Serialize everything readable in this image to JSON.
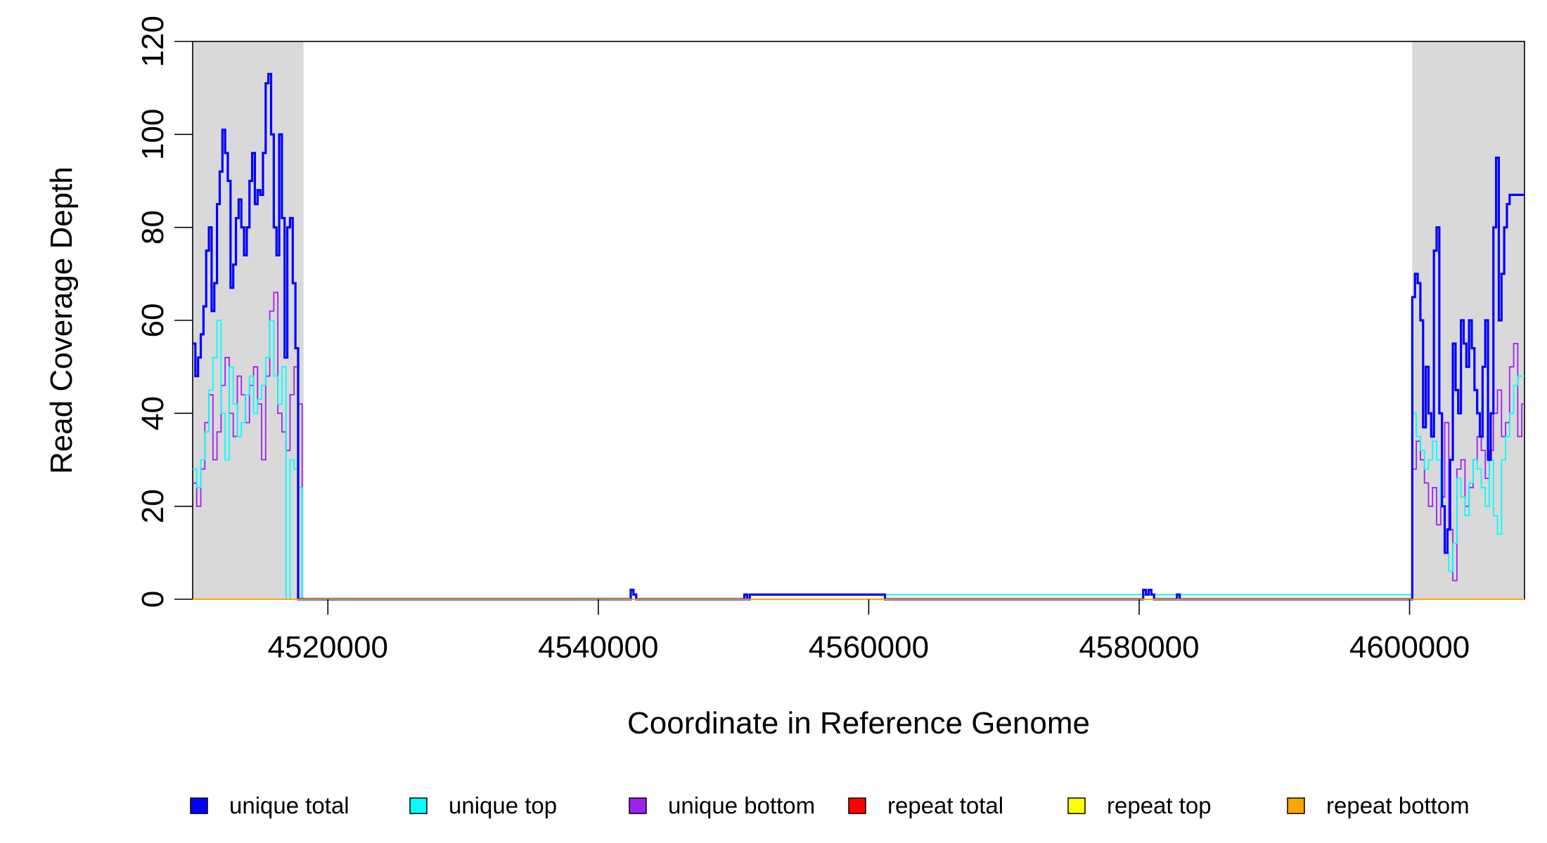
{
  "chart_data": {
    "type": "line",
    "xlabel": "Coordinate in Reference Genome",
    "ylabel": "Read Coverage Depth",
    "xlim": [
      4510000,
      4608500
    ],
    "ylim": [
      0,
      120
    ],
    "x_ticks": [
      4520000,
      4540000,
      4560000,
      4580000,
      4600000
    ],
    "x_tick_labels": [
      "4520000",
      "4540000",
      "4560000",
      "4580000",
      "4600000"
    ],
    "y_ticks": [
      0,
      20,
      40,
      60,
      80,
      100,
      120
    ],
    "y_tick_labels": [
      "0",
      "20",
      "40",
      "60",
      "80",
      "100",
      "120"
    ],
    "shaded_regions": [
      [
        4510000,
        4518200
      ],
      [
        4600200,
        4608500
      ]
    ],
    "shade_color": "#d9d9d9",
    "legend_position": "bottom",
    "series": [
      {
        "name": "unique total",
        "color": "#0000ff",
        "x": [
          4510000,
          4510200,
          4510400,
          4510600,
          4510800,
          4511000,
          4511200,
          4511400,
          4511600,
          4511800,
          4512000,
          4512200,
          4512400,
          4512600,
          4512800,
          4513000,
          4513200,
          4513400,
          4513600,
          4513800,
          4514000,
          4514200,
          4514400,
          4514600,
          4514800,
          4515000,
          4515200,
          4515400,
          4515600,
          4515800,
          4516000,
          4516200,
          4516400,
          4516600,
          4516800,
          4517000,
          4517200,
          4517400,
          4517600,
          4517800,
          4518000,
          4518200,
          4518400,
          4542400,
          4542600,
          4542800,
          4550800,
          4551000,
          4551200,
          4560800,
          4561000,
          4561200,
          4580300,
          4580500,
          4580700,
          4580900,
          4581100,
          4581300,
          4582800,
          4583000,
          4600200,
          4600400,
          4600600,
          4600800,
          4601000,
          4601200,
          4601400,
          4601600,
          4601800,
          4602000,
          4602200,
          4602400,
          4602600,
          4602800,
          4603000,
          4603200,
          4603400,
          4603600,
          4603800,
          4604000,
          4604200,
          4604400,
          4604600,
          4604800,
          4605000,
          4605200,
          4605400,
          4605600,
          4605800,
          4606000,
          4606200,
          4606400,
          4606600,
          4606800,
          4607000,
          4607200,
          4607400,
          4607600,
          4607800,
          4608000,
          4608200,
          4608400
        ],
        "y": [
          55,
          48,
          52,
          57,
          63,
          75,
          80,
          62,
          68,
          85,
          92,
          101,
          96,
          90,
          67,
          72,
          82,
          86,
          80,
          74,
          80,
          90,
          96,
          85,
          88,
          87,
          96,
          111,
          113,
          100,
          80,
          74,
          100,
          82,
          52,
          80,
          82,
          68,
          54,
          0,
          0,
          0,
          0,
          2,
          1,
          0,
          1,
          0,
          1,
          1,
          1,
          0,
          2,
          1,
          2,
          1,
          0,
          0,
          1,
          0,
          65,
          70,
          68,
          60,
          37,
          50,
          40,
          35,
          75,
          80,
          40,
          20,
          10,
          15,
          30,
          55,
          45,
          40,
          60,
          55,
          50,
          60,
          54,
          45,
          40,
          35,
          50,
          60,
          30,
          40,
          80,
          95,
          60,
          70,
          80,
          85,
          87,
          87,
          87,
          87,
          87,
          87
        ]
      },
      {
        "name": "unique top",
        "color": "#00ffff",
        "x": [
          4510000,
          4510300,
          4510600,
          4510900,
          4511200,
          4511500,
          4511800,
          4512100,
          4512400,
          4512700,
          4513000,
          4513300,
          4513600,
          4513900,
          4514200,
          4514500,
          4514800,
          4515100,
          4515400,
          4515700,
          4516000,
          4516300,
          4516600,
          4516900,
          4517200,
          4517500,
          4517800,
          4518100,
          4518400,
          4551000,
          4561000,
          4580500,
          4582900,
          4600200,
          4600500,
          4600800,
          4601100,
          4601400,
          4601700,
          4602000,
          4602300,
          4602600,
          4602900,
          4603200,
          4603500,
          4603800,
          4604100,
          4604400,
          4604700,
          4605000,
          4605300,
          4605600,
          4605900,
          4606200,
          4606500,
          4606800,
          4607100,
          4607400,
          4607700,
          4608000,
          4608300
        ],
        "y": [
          28,
          24,
          30,
          36,
          45,
          52,
          60,
          40,
          30,
          50,
          42,
          35,
          38,
          44,
          48,
          40,
          43,
          46,
          52,
          60,
          48,
          42,
          50,
          0,
          30,
          28,
          24,
          0,
          0,
          1,
          1,
          1,
          1,
          40,
          35,
          32,
          28,
          30,
          34,
          30,
          20,
          10,
          6,
          12,
          26,
          22,
          18,
          25,
          30,
          28,
          24,
          20,
          30,
          18,
          14,
          30,
          35,
          40,
          46,
          48,
          48
        ]
      },
      {
        "name": "unique bottom",
        "color": "#a020f0",
        "x": [
          4510000,
          4510300,
          4510600,
          4510900,
          4511200,
          4511500,
          4511800,
          4512100,
          4512400,
          4512700,
          4513000,
          4513300,
          4513600,
          4513900,
          4514200,
          4514500,
          4514800,
          4515100,
          4515400,
          4515700,
          4516000,
          4516300,
          4516600,
          4516900,
          4517200,
          4517500,
          4517800,
          4518100,
          4518400,
          4551000,
          4561000,
          4580500,
          4600200,
          4600500,
          4600800,
          4601100,
          4601400,
          4601700,
          4602000,
          4602300,
          4602600,
          4602900,
          4603200,
          4603500,
          4603800,
          4604100,
          4604400,
          4604700,
          4605000,
          4605300,
          4605600,
          4605900,
          4606200,
          4606500,
          4606800,
          4607100,
          4607400,
          4607700,
          4608000,
          4608300
        ],
        "y": [
          25,
          20,
          28,
          38,
          44,
          30,
          36,
          46,
          52,
          40,
          35,
          48,
          44,
          38,
          46,
          50,
          42,
          30,
          48,
          62,
          66,
          40,
          36,
          32,
          44,
          50,
          42,
          0,
          0,
          1,
          1,
          1,
          28,
          34,
          30,
          25,
          20,
          24,
          16,
          22,
          38,
          15,
          4,
          28,
          30,
          20,
          24,
          30,
          35,
          32,
          26,
          32,
          40,
          45,
          35,
          38,
          50,
          55,
          35,
          42
        ]
      },
      {
        "name": "repeat total",
        "color": "#ff0000",
        "x": [
          4510000,
          4608500
        ],
        "y": [
          0,
          0
        ]
      },
      {
        "name": "repeat top",
        "color": "#ffff00",
        "x": [
          4510000,
          4608500
        ],
        "y": [
          0,
          0
        ]
      },
      {
        "name": "repeat bottom",
        "color": "#ffa500",
        "x": [
          4510000,
          4608500
        ],
        "y": [
          0,
          0
        ]
      }
    ]
  }
}
